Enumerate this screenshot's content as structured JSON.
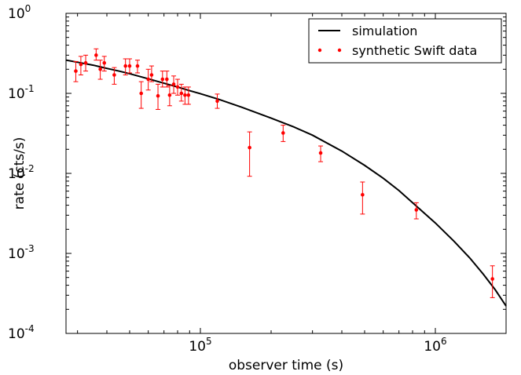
{
  "chart_data": {
    "type": "scatter",
    "title": "",
    "xlabel": "observer time (s)",
    "ylabel": "rate (cts/s)",
    "xscale": "log",
    "yscale": "log",
    "xlim": [
      26800,
      2000000
    ],
    "ylim": [
      0.0001,
      1
    ],
    "grid": false,
    "legend_placement": "top-right",
    "x_ticks": [
      {
        "value": 100000,
        "base": "10",
        "exp": "5"
      },
      {
        "value": 1000000,
        "base": "10",
        "exp": "6"
      }
    ],
    "y_ticks": [
      {
        "value": 0.0001,
        "base": "10",
        "exp": "-4"
      },
      {
        "value": 0.001,
        "base": "10",
        "exp": "-3"
      },
      {
        "value": 0.01,
        "base": "10",
        "exp": "-2"
      },
      {
        "value": 0.1,
        "base": "10",
        "exp": "-1"
      },
      {
        "value": 1,
        "base": "10",
        "exp": "0"
      }
    ],
    "series": [
      {
        "name": "simulation",
        "kind": "line",
        "color": "#000000",
        "x": [
          26800,
          30000,
          35000,
          40000,
          45000,
          50000,
          60000,
          70000,
          80000,
          90000,
          100000,
          120000,
          150000,
          200000,
          250000,
          300000,
          400000,
          500000,
          600000,
          700000,
          800000,
          1000000,
          1200000,
          1400000,
          1600000,
          1800000,
          2000000
        ],
        "y": [
          0.26,
          0.245,
          0.225,
          0.205,
          0.19,
          0.176,
          0.152,
          0.134,
          0.12,
          0.108,
          0.099,
          0.084,
          0.067,
          0.049,
          0.038,
          0.03,
          0.019,
          0.0126,
          0.0087,
          0.0061,
          0.0043,
          0.0024,
          0.00142,
          0.00088,
          0.00055,
          0.00035,
          0.00022
        ]
      },
      {
        "name": "synthetic Swift data",
        "kind": "errorbar",
        "color": "#ff0000",
        "points": [
          {
            "x": 29500,
            "y": 0.19,
            "lo": 0.14,
            "hi": 0.25
          },
          {
            "x": 31000,
            "y": 0.23,
            "lo": 0.17,
            "hi": 0.29
          },
          {
            "x": 32500,
            "y": 0.24,
            "lo": 0.19,
            "hi": 0.3
          },
          {
            "x": 36000,
            "y": 0.3,
            "lo": 0.26,
            "hi": 0.36
          },
          {
            "x": 37500,
            "y": 0.2,
            "lo": 0.15,
            "hi": 0.26
          },
          {
            "x": 39000,
            "y": 0.24,
            "lo": 0.19,
            "hi": 0.29
          },
          {
            "x": 43000,
            "y": 0.17,
            "lo": 0.13,
            "hi": 0.21
          },
          {
            "x": 48000,
            "y": 0.22,
            "lo": 0.17,
            "hi": 0.27
          },
          {
            "x": 50000,
            "y": 0.22,
            "lo": 0.18,
            "hi": 0.27
          },
          {
            "x": 54000,
            "y": 0.22,
            "lo": 0.18,
            "hi": 0.26
          },
          {
            "x": 56000,
            "y": 0.1,
            "lo": 0.065,
            "hi": 0.14
          },
          {
            "x": 60000,
            "y": 0.15,
            "lo": 0.11,
            "hi": 0.2
          },
          {
            "x": 62000,
            "y": 0.17,
            "lo": 0.14,
            "hi": 0.22
          },
          {
            "x": 66000,
            "y": 0.093,
            "lo": 0.063,
            "hi": 0.13
          },
          {
            "x": 69000,
            "y": 0.15,
            "lo": 0.12,
            "hi": 0.19
          },
          {
            "x": 72000,
            "y": 0.15,
            "lo": 0.12,
            "hi": 0.19
          },
          {
            "x": 74000,
            "y": 0.095,
            "lo": 0.07,
            "hi": 0.125
          },
          {
            "x": 77000,
            "y": 0.13,
            "lo": 0.1,
            "hi": 0.165
          },
          {
            "x": 80000,
            "y": 0.12,
            "lo": 0.095,
            "hi": 0.15
          },
          {
            "x": 83000,
            "y": 0.1,
            "lo": 0.08,
            "hi": 0.13
          },
          {
            "x": 86000,
            "y": 0.095,
            "lo": 0.073,
            "hi": 0.12
          },
          {
            "x": 89000,
            "y": 0.095,
            "lo": 0.073,
            "hi": 0.12
          },
          {
            "x": 118000,
            "y": 0.08,
            "lo": 0.065,
            "hi": 0.098
          },
          {
            "x": 162000,
            "y": 0.021,
            "lo": 0.0092,
            "hi": 0.033
          },
          {
            "x": 225000,
            "y": 0.032,
            "lo": 0.025,
            "hi": 0.04
          },
          {
            "x": 325000,
            "y": 0.018,
            "lo": 0.014,
            "hi": 0.022
          },
          {
            "x": 490000,
            "y": 0.0054,
            "lo": 0.0031,
            "hi": 0.0078
          },
          {
            "x": 830000,
            "y": 0.0035,
            "lo": 0.0027,
            "hi": 0.0043
          },
          {
            "x": 1750000,
            "y": 0.00048,
            "lo": 0.00028,
            "hi": 0.0007
          }
        ]
      }
    ]
  }
}
